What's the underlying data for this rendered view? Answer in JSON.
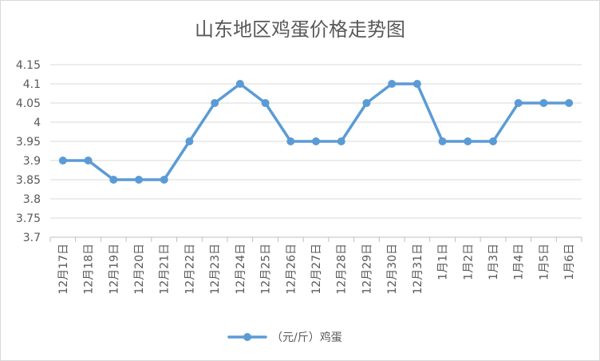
{
  "chart_data": {
    "type": "line",
    "title": "山东地区鸡蛋价格走势图",
    "categories": [
      "12月17日",
      "12月18日",
      "12月19日",
      "12月20日",
      "12月21日",
      "12月22日",
      "12月23日",
      "12月24日",
      "12月25日",
      "12月26日",
      "12月27日",
      "12月28日",
      "12月29日",
      "12月30日",
      "12月31日",
      "1月1日",
      "1月2日",
      "1月3日",
      "1月4日",
      "1月5日",
      "1月6日"
    ],
    "series": [
      {
        "name": "（元/斤）鸡蛋",
        "values": [
          3.9,
          3.9,
          3.85,
          3.85,
          3.85,
          3.95,
          4.05,
          4.1,
          4.05,
          3.95,
          3.95,
          3.95,
          4.05,
          4.1,
          4.1,
          3.95,
          3.95,
          3.95,
          4.05,
          4.05,
          4.05
        ],
        "color": "#5b9bd5"
      }
    ],
    "yticks": [
      "4.15",
      "4.1",
      "4.05",
      "4",
      "3.95",
      "3.9",
      "3.85",
      "3.8",
      "3.75",
      "3.7"
    ],
    "ylim": [
      3.7,
      4.15
    ],
    "grid": true,
    "legend": "bottom"
  }
}
